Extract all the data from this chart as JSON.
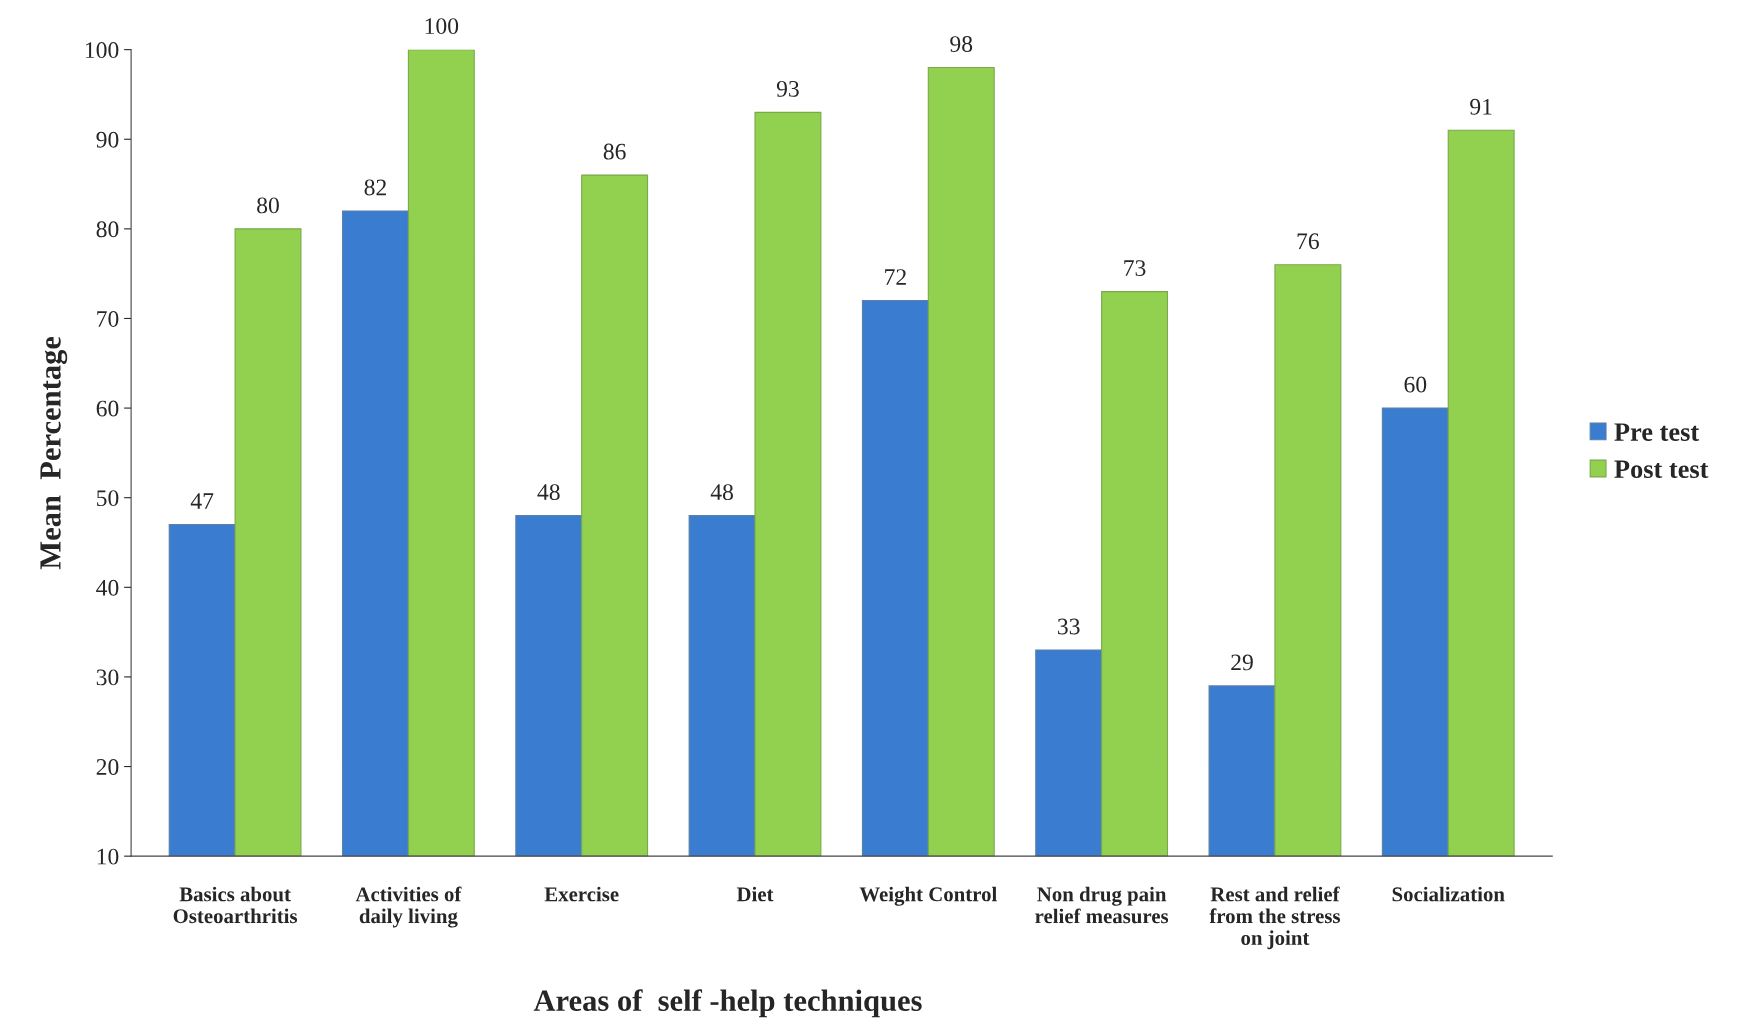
{
  "chart_data": {
    "type": "bar",
    "xlabel": "Areas of  self -help techniques",
    "ylabel": "Mean  Percentage",
    "categories": [
      "Basics about\nOsteoarthritis",
      "Activities of\ndaily living",
      "Exercise",
      "Diet",
      "Weight Control",
      "Non drug pain\nrelief measures",
      "Rest and relief\nfrom the stress\non joint",
      "Socialization"
    ],
    "series": [
      {
        "name": "Pre test",
        "color": "#3a7dd0",
        "values": [
          47,
          82,
          48,
          48,
          72,
          33,
          29,
          60
        ]
      },
      {
        "name": "Post test",
        "color": "#92d050",
        "values": [
          80,
          100,
          86,
          93,
          98,
          73,
          76,
          91
        ]
      }
    ],
    "ylim": [
      10,
      100
    ],
    "yticks": [
      10,
      20,
      30,
      40,
      50,
      60,
      70,
      80,
      90,
      100
    ],
    "data_labels": true,
    "grid": false,
    "legend": "right"
  }
}
